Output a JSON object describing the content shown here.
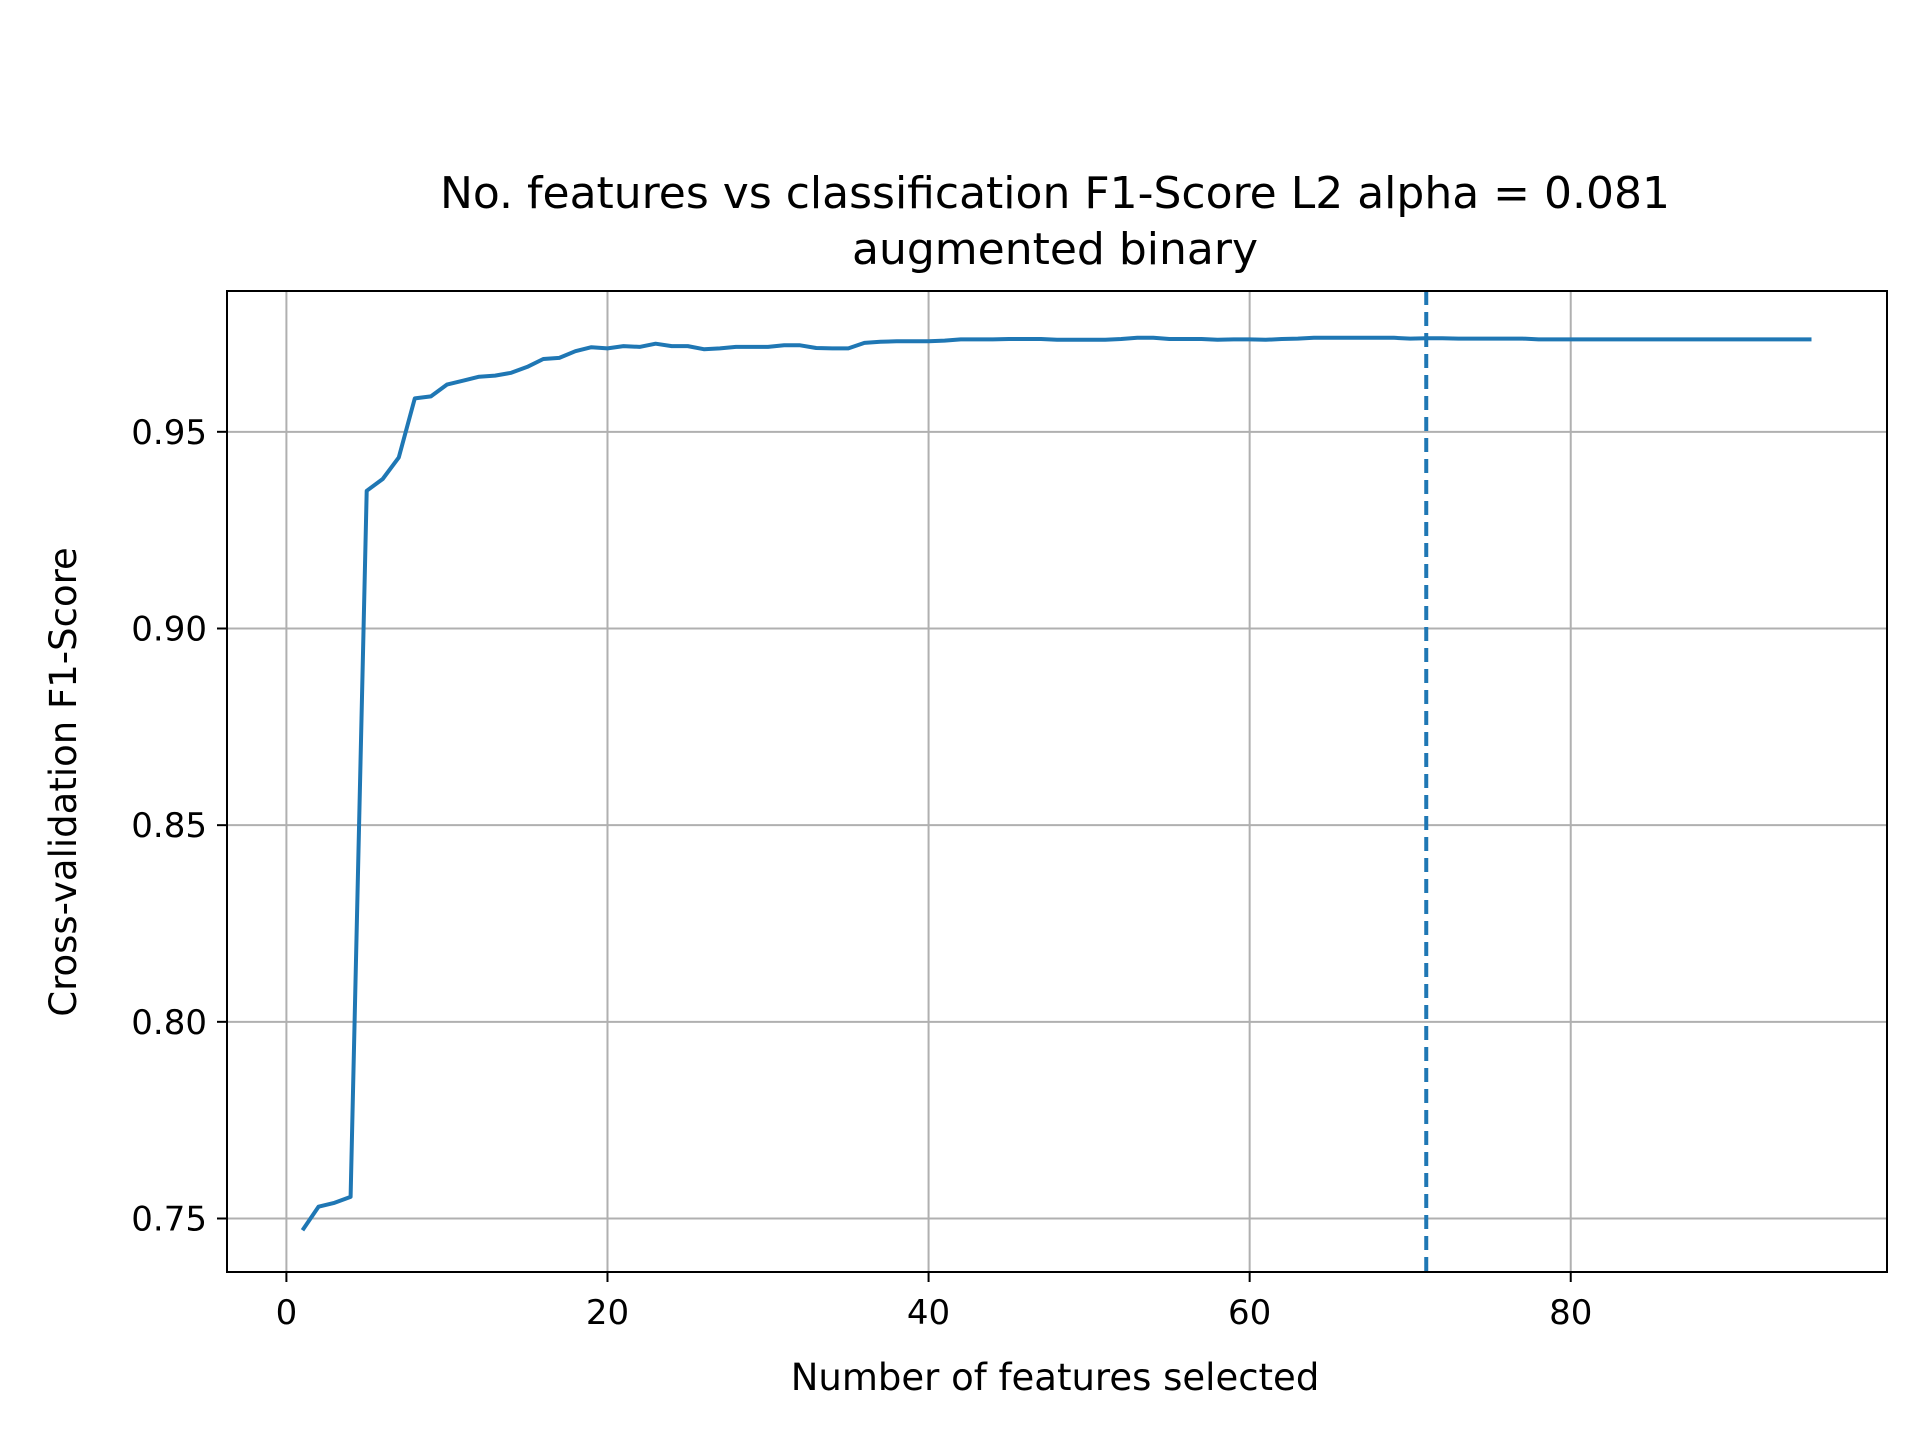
{
  "chart_data": {
    "type": "line",
    "title": "No. features vs classification F1-Score L2 alpha = 0.081",
    "subtitle": "augmented binary",
    "xlabel": "Number of features selected",
    "ylabel": "Cross-validation F1-Score",
    "xlim": [
      -3.7,
      99.7
    ],
    "ylim": [
      0.7364,
      0.9858
    ],
    "xticks": [
      0,
      20,
      40,
      60,
      80
    ],
    "yticks": [
      0.75,
      0.8,
      0.85,
      0.9,
      0.95
    ],
    "xtick_labels": [
      "0",
      "20",
      "40",
      "60",
      "80"
    ],
    "ytick_labels": [
      "0.75",
      "0.80",
      "0.85",
      "0.90",
      "0.95"
    ],
    "grid": true,
    "line_color": "#1f77b4",
    "grid_color": "#b0b0b0",
    "series": [
      {
        "x": [
          1,
          2,
          3,
          4,
          5,
          6,
          7,
          8,
          9,
          10,
          11,
          12,
          13,
          14,
          15,
          16,
          17,
          18,
          19,
          20,
          21,
          22,
          23,
          24,
          25,
          26,
          27,
          28,
          29,
          30,
          31,
          32,
          33,
          34,
          35,
          36,
          37,
          38,
          39,
          40,
          41,
          42,
          43,
          44,
          45,
          46,
          47,
          48,
          49,
          50,
          51,
          52,
          53,
          54,
          55,
          56,
          57,
          58,
          59,
          60,
          61,
          62,
          63,
          64,
          65,
          66,
          67,
          68,
          69,
          70,
          71,
          72,
          73,
          74,
          75,
          76,
          77,
          78,
          79,
          80,
          81,
          82,
          83,
          84,
          85,
          86,
          87,
          88,
          89,
          90,
          91,
          92,
          93,
          94,
          95
        ],
        "values": [
          0.747,
          0.753,
          0.754,
          0.7555,
          0.935,
          0.938,
          0.9435,
          0.9585,
          0.959,
          0.962,
          0.963,
          0.964,
          0.9643,
          0.965,
          0.9665,
          0.9685,
          0.9688,
          0.9705,
          0.9715,
          0.9712,
          0.9718,
          0.9716,
          0.9724,
          0.9718,
          0.9718,
          0.971,
          0.9712,
          0.9716,
          0.9716,
          0.9716,
          0.972,
          0.972,
          0.9713,
          0.9712,
          0.9712,
          0.9726,
          0.9729,
          0.973,
          0.973,
          0.973,
          0.9732,
          0.9735,
          0.9735,
          0.9735,
          0.9736,
          0.9736,
          0.9736,
          0.9734,
          0.9734,
          0.9734,
          0.9734,
          0.9736,
          0.9739,
          0.9739,
          0.9736,
          0.9736,
          0.9736,
          0.9734,
          0.9735,
          0.9735,
          0.9734,
          0.9736,
          0.9737,
          0.9739,
          0.9739,
          0.9739,
          0.9739,
          0.9739,
          0.9739,
          0.9737,
          0.9738,
          0.9738,
          0.9737,
          0.9737,
          0.9737,
          0.9737,
          0.9737,
          0.9735,
          0.9735,
          0.9735,
          0.9735,
          0.9735,
          0.9735,
          0.9735,
          0.9735,
          0.9735,
          0.9735,
          0.9735,
          0.9735,
          0.9735,
          0.9735,
          0.9735,
          0.9735,
          0.9735,
          0.9735
        ]
      }
    ],
    "reference_lines": [
      {
        "orientation": "vertical",
        "x": 71,
        "style": "dashed"
      }
    ]
  }
}
